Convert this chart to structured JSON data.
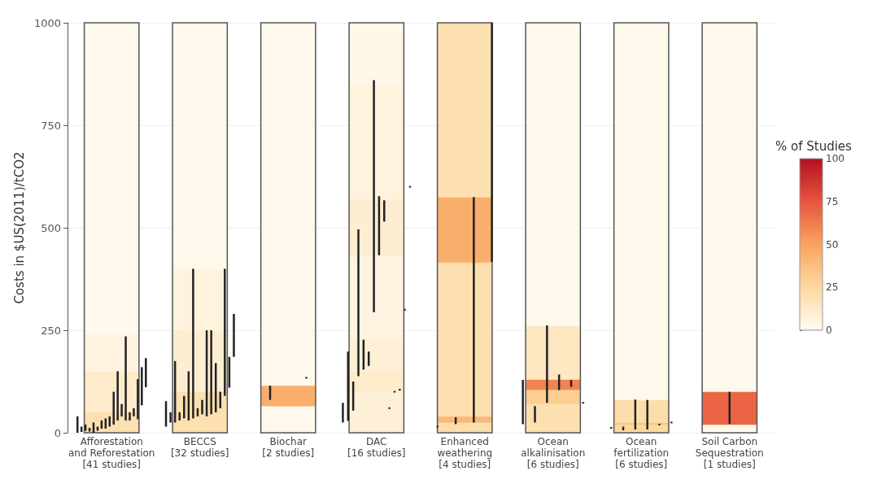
{
  "chart_data": {
    "type": "bar",
    "ylabel": "Costs in $US(2011)/tCO2",
    "categories": [
      "Afforestation\nand Reforestation\n[41 studies]",
      "BECCS\n[32 studies]",
      "Biochar\n[2 studies]",
      "DAC\n[16 studies]",
      "Enhanced\nweathering\n[4 studies]",
      "Ocean\nalkalinisation\n[6 studies]",
      "Ocean\nfertilization\n[6 studies]",
      "Soil Carbon\nSequestration\n[1 studies]"
    ],
    "ylim": [
      0,
      1000
    ],
    "yticks": [
      0,
      250,
      500,
      750,
      1000
    ],
    "grid": "y",
    "clabel": "% of Studies",
    "clim": [
      0,
      100
    ],
    "cticks": [
      0,
      25,
      50,
      75,
      100
    ],
    "series": [
      {
        "x": [
          "Afforestation\nand Reforestation\n[41 studies]",
          "Afforestation\nand Reforestation\n[41 studies]",
          "Afforestation\nand Reforestation\n[41 studies]",
          "Afforestation\nand Reforestation\n[41 studies]",
          "BECCS\n[32 studies]",
          "BECCS\n[32 studies]",
          "BECCS\n[32 studies]",
          "BECCS\n[32 studies]",
          "Biochar\n[2 studies]",
          "Biochar\n[2 studies]",
          "Biochar\n[2 studies]",
          "DAC\n[16 studies]",
          "DAC\n[16 studies]",
          "DAC\n[16 studies]",
          "DAC\n[16 studies]",
          "DAC\n[16 studies]",
          "DAC\n[16 studies]",
          "DAC\n[16 studies]",
          "Enhanced\nweathering\n[4 studies]",
          "Enhanced\nweathering\n[4 studies]",
          "Enhanced\nweathering\n[4 studies]",
          "Enhanced\nweathering\n[4 studies]",
          "Enhanced\nweathering\n[4 studies]",
          "Ocean\nalkalinisation\n[6 studies]",
          "Ocean\nalkalinisation\n[6 studies]",
          "Ocean\nalkalinisation\n[6 studies]",
          "Ocean\nalkalinisation\n[6 studies]",
          "Ocean\nalkalinisation\n[6 studies]",
          "Ocean\nfertilization\n[6 studies]",
          "Ocean\nfertilization\n[6 studies]",
          "Ocean\nfertilization\n[6 studies]",
          "Ocean\nfertilization\n[6 studies]",
          "Soil Carbon\nSequestration\n[1 studies]",
          "Soil Carbon\nSequestration\n[1 studies]",
          "Soil Carbon\nSequestration\n[1 studies]"
        ],
        "base": [
          0,
          50,
          150,
          240,
          0,
          100,
          250,
          400,
          0,
          65,
          115,
          0,
          100,
          150,
          230,
          430,
          570,
          850,
          0,
          25,
          40,
          415,
          575,
          0,
          70,
          105,
          130,
          260,
          0,
          20,
          25,
          80,
          0,
          20,
          100
        ],
        "values": [
          50,
          100,
          90,
          760,
          100,
          150,
          150,
          600,
          65,
          50,
          885,
          100,
          50,
          80,
          200,
          140,
          280,
          150,
          25,
          15,
          375,
          160,
          425,
          70,
          35,
          25,
          130,
          740,
          20,
          5,
          55,
          920,
          20,
          80,
          900
        ],
        "cvalues": [
          20,
          12,
          5,
          2,
          20,
          10,
          6,
          2,
          2,
          45,
          2,
          8,
          12,
          8,
          5,
          10,
          6,
          3,
          22,
          40,
          20,
          45,
          20,
          20,
          30,
          60,
          15,
          2,
          25,
          35,
          22,
          2,
          2,
          70,
          2
        ],
        "colors": [
          "#fde0b0",
          "#feebca",
          "#fff4e1",
          "#fff9eb",
          "#fde0b0",
          "#feeed1",
          "#fff3de",
          "#fff9eb",
          "#fff9eb",
          "#f9af6c",
          "#fff9eb",
          "#fef0d7",
          "#feebca",
          "#fef0d7",
          "#fff4e1",
          "#feeed1",
          "#fff3de",
          "#fff7e8",
          "#fdddaa",
          "#fab979",
          "#fde0b0",
          "#f9af6c",
          "#fde0b0",
          "#fde0b0",
          "#fcce93",
          "#f28452",
          "#fee7c1",
          "#fff9eb",
          "#fdd9a0",
          "#fbc486",
          "#fdddaa",
          "#fff9eb",
          "#fff9eb",
          "#eb6545",
          "#fff9eb"
        ]
      },
      {
        "color": "#222222",
        "x": [
          "Afforestation\nand Reforestation\n[41 studies]",
          "Afforestation\nand Reforestation\n[41 studies]",
          "Afforestation\nand Reforestation\n[41 studies]",
          "Afforestation\nand Reforestation\n[41 studies]",
          "Afforestation\nand Reforestation\n[41 studies]",
          "Afforestation\nand Reforestation\n[41 studies]",
          "Afforestation\nand Reforestation\n[41 studies]",
          "Afforestation\nand Reforestation\n[41 studies]",
          "Afforestation\nand Reforestation\n[41 studies]",
          "Afforestation\nand Reforestation\n[41 studies]",
          "Afforestation\nand Reforestation\n[41 studies]",
          "Afforestation\nand Reforestation\n[41 studies]",
          "Afforestation\nand Reforestation\n[41 studies]",
          "Afforestation\nand Reforestation\n[41 studies]",
          "Afforestation\nand Reforestation\n[41 studies]",
          "Afforestation\nand Reforestation\n[41 studies]",
          "Afforestation\nand Reforestation\n[41 studies]",
          "Afforestation\nand Reforestation\n[41 studies]",
          "BECCS\n[32 studies]",
          "BECCS\n[32 studies]",
          "BECCS\n[32 studies]",
          "BECCS\n[32 studies]",
          "BECCS\n[32 studies]",
          "BECCS\n[32 studies]",
          "BECCS\n[32 studies]",
          "BECCS\n[32 studies]",
          "BECCS\n[32 studies]",
          "BECCS\n[32 studies]",
          "BECCS\n[32 studies]",
          "BECCS\n[32 studies]",
          "BECCS\n[32 studies]",
          "BECCS\n[32 studies]",
          "BECCS\n[32 studies]",
          "BECCS\n[32 studies]",
          "Biochar\n[2 studies]",
          "Biochar\n[2 studies]",
          "DAC\n[16 studies]",
          "DAC\n[16 studies]",
          "DAC\n[16 studies]",
          "DAC\n[16 studies]",
          "DAC\n[16 studies]",
          "DAC\n[16 studies]",
          "DAC\n[16 studies]",
          "DAC\n[16 studies]",
          "DAC\n[16 studies]",
          "DAC\n[16 studies]",
          "DAC\n[16 studies]",
          "DAC\n[16 studies]",
          "DAC\n[16 studies]",
          "DAC\n[16 studies]",
          "Enhanced\nweathering\n[4 studies]",
          "Enhanced\nweathering\n[4 studies]",
          "Enhanced\nweathering\n[4 studies]",
          "Enhanced\nweathering\n[4 studies]",
          "Ocean\nalkalinisation\n[6 studies]",
          "Ocean\nalkalinisation\n[6 studies]",
          "Ocean\nalkalinisation\n[6 studies]",
          "Ocean\nalkalinisation\n[6 studies]",
          "Ocean\nalkalinisation\n[6 studies]",
          "Ocean\nalkalinisation\n[6 studies]",
          "Ocean\nfertilization\n[6 studies]",
          "Ocean\nfertilization\n[6 studies]",
          "Ocean\nfertilization\n[6 studies]",
          "Ocean\nfertilization\n[6 studies]",
          "Ocean\nfertilization\n[6 studies]",
          "Ocean\nfertilization\n[6 studies]",
          "Soil Carbon\nSequestration\n[1 studies]"
        ],
        "base": [
          0,
          2,
          5,
          3,
          0,
          5,
          10,
          10,
          15,
          20,
          30,
          40,
          30,
          30,
          40,
          33,
          67,
          111,
          15,
          25,
          25,
          30,
          35,
          30,
          35,
          40,
          45,
          40,
          45,
          50,
          60,
          90,
          110,
          185,
          80,
          134,
          25,
          29,
          54,
          138,
          154,
          163,
          294,
          433,
          515,
          60,
          100,
          105,
          300,
          600,
          15,
          21,
          25,
          417,
          21,
          25,
          73,
          104,
          112,
          73,
          12,
          6,
          8,
          8,
          20,
          25,
          22
        ],
        "values": [
          40,
          13,
          15,
          9,
          25,
          10,
          20,
          25,
          25,
          80,
          120,
          30,
          205,
          20,
          20,
          98,
          93,
          71,
          62,
          25,
          150,
          20,
          55,
          120,
          365,
          20,
          35,
          210,
          205,
          120,
          40,
          310,
          75,
          105,
          35,
          2,
          48,
          169,
          71,
          358,
          73,
          35,
          566,
          144,
          52,
          2,
          2,
          2,
          2,
          2,
          2,
          17,
          550,
          583,
          108,
          40,
          189,
          38,
          17,
          2,
          2,
          9,
          73,
          72,
          2,
          2,
          78
        ]
      }
    ]
  }
}
